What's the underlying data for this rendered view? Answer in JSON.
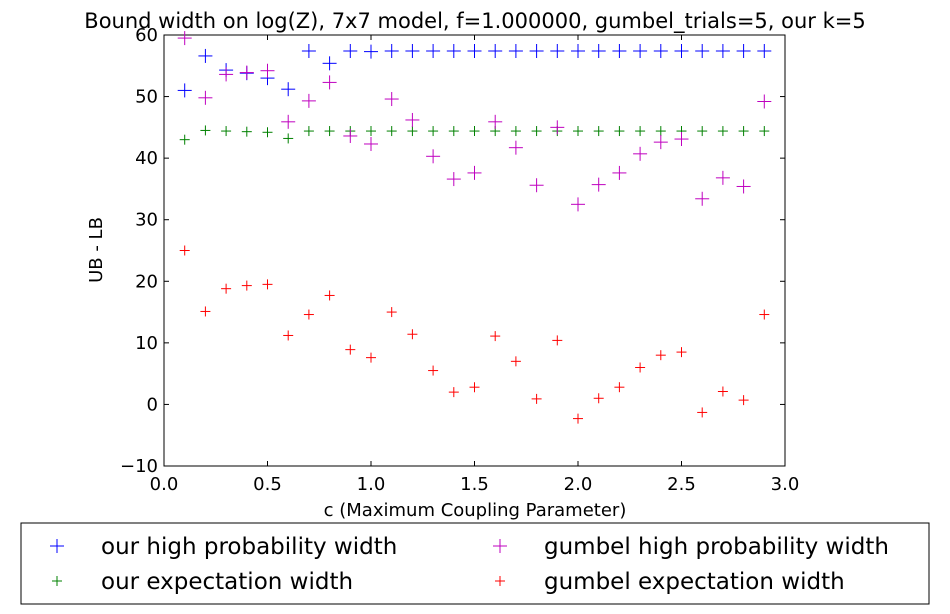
{
  "chart_data": {
    "type": "scatter",
    "title": "Bound width on log(Z), 7x7 model, f=1.000000, gumbel_trials=5, our k=5",
    "xlabel": "c (Maximum Coupling Parameter)",
    "ylabel": "UB - LB",
    "xlim": [
      0.0,
      3.0
    ],
    "ylim": [
      -10,
      60
    ],
    "xticks": [
      0.0,
      0.5,
      1.0,
      1.5,
      2.0,
      2.5,
      3.0
    ],
    "xtick_labels": [
      "0.0",
      "0.5",
      "1.0",
      "1.5",
      "2.0",
      "2.5",
      "3.0"
    ],
    "yticks": [
      -10,
      0,
      10,
      20,
      30,
      40,
      50,
      60
    ],
    "ytick_labels": [
      "−10",
      "0",
      "10",
      "20",
      "30",
      "40",
      "50",
      "60"
    ],
    "grid": false,
    "legend_position": "below plot",
    "x": [
      0.1,
      0.2,
      0.3,
      0.4,
      0.5,
      0.6,
      0.7,
      0.8,
      0.9,
      1.0,
      1.1,
      1.2,
      1.3,
      1.4,
      1.5,
      1.6,
      1.7,
      1.8,
      1.9,
      2.0,
      2.1,
      2.2,
      2.3,
      2.4,
      2.5,
      2.6,
      2.7,
      2.8,
      2.9
    ],
    "series": [
      {
        "name": "our high probability width",
        "color": "#0000ff",
        "marker": "large-plus",
        "values": [
          51.0,
          56.6,
          54.3,
          53.8,
          53.0,
          51.2,
          57.4,
          55.4,
          57.4,
          57.3,
          57.4,
          57.4,
          57.4,
          57.4,
          57.4,
          57.4,
          57.4,
          57.4,
          57.4,
          57.4,
          57.4,
          57.4,
          57.4,
          57.4,
          57.4,
          57.4,
          57.4,
          57.4,
          57.4
        ]
      },
      {
        "name": "our expectation width",
        "color": "#008000",
        "marker": "small-plus",
        "values": [
          43.0,
          44.5,
          44.4,
          44.3,
          44.2,
          43.2,
          44.4,
          44.4,
          44.4,
          44.4,
          44.4,
          44.4,
          44.4,
          44.4,
          44.4,
          44.4,
          44.4,
          44.4,
          44.4,
          44.4,
          44.4,
          44.4,
          44.4,
          44.4,
          44.4,
          44.4,
          44.4,
          44.4,
          44.4
        ]
      },
      {
        "name": "gumbel high probability width",
        "color": "#bf00bf",
        "marker": "large-plus",
        "values": [
          59.5,
          49.8,
          53.6,
          53.9,
          54.2,
          45.9,
          49.3,
          52.3,
          43.6,
          42.3,
          49.6,
          46.2,
          40.3,
          36.6,
          37.6,
          45.9,
          41.7,
          35.6,
          45.0,
          32.5,
          35.7,
          37.6,
          40.7,
          42.6,
          43.1,
          33.4,
          36.8,
          35.4,
          49.2
        ]
      },
      {
        "name": "gumbel expectation width",
        "color": "#ff0000",
        "marker": "small-plus",
        "values": [
          25.0,
          15.1,
          18.8,
          19.3,
          19.5,
          11.2,
          14.6,
          17.7,
          8.9,
          7.6,
          15.0,
          11.4,
          5.5,
          2.0,
          2.8,
          11.1,
          7.0,
          0.9,
          10.4,
          -2.3,
          1.0,
          2.8,
          6.0,
          8.0,
          8.5,
          -1.3,
          2.1,
          0.7,
          14.6
        ]
      }
    ]
  }
}
